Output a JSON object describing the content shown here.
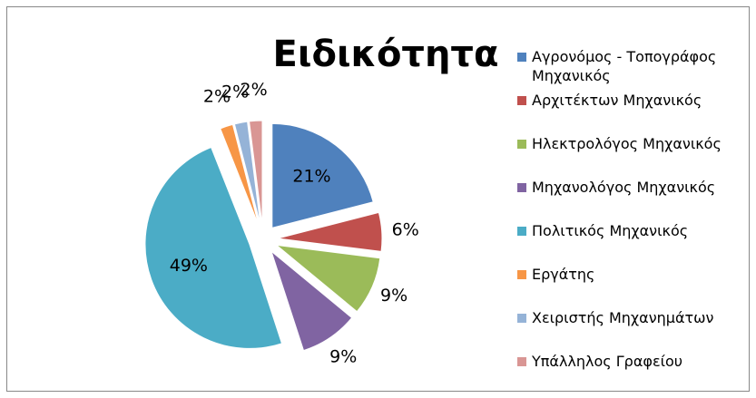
{
  "chart_data": {
    "type": "pie",
    "title": "Ειδικότητα",
    "categories": [
      "Αγρονόμος - Τοπογράφος Μηχανικός",
      "Αρχιτέκτων Μηχανικός",
      "Ηλεκτρολόγος Μηχανικός",
      "Μηχανολόγος Μηχανικός",
      "Πολιτικός Μηχανικός",
      "Εργάτης",
      "Χειριστής Μηχανημάτων",
      "Υπάλληλος Γραφείου"
    ],
    "values": [
      21,
      6,
      9,
      9,
      49,
      2,
      2,
      2
    ],
    "value_labels": [
      "21%",
      "6%",
      "9%",
      "9%",
      "49%",
      "2%",
      "2%",
      "2%"
    ],
    "colors": [
      "#4F81BD",
      "#C0504D",
      "#9BBB59",
      "#8064A2",
      "#4BACC6",
      "#F79646",
      "#95B3D7",
      "#D99694"
    ],
    "legend": "right",
    "exploded": true
  }
}
